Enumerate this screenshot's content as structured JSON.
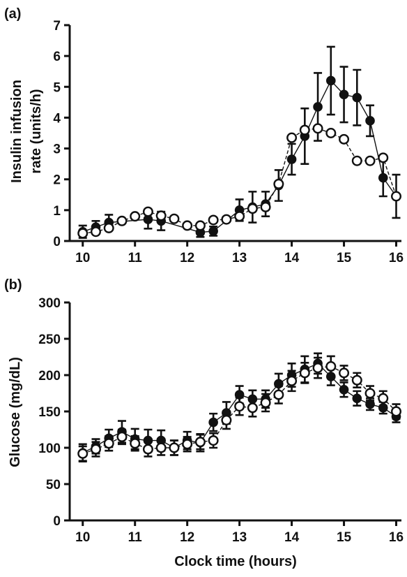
{
  "chart_data": [
    {
      "panel_label": "(a)",
      "type": "line",
      "ylabel_lines": [
        "Insulin infusion",
        "rate (units/h)"
      ],
      "xlabel": "",
      "xlim": [
        9.75,
        16.1
      ],
      "ylim": [
        0,
        7
      ],
      "xticks": [
        10,
        11,
        12,
        13,
        14,
        15,
        16
      ],
      "yticks": [
        0,
        1,
        2,
        3,
        4,
        5,
        6,
        7
      ],
      "grid": false,
      "series": [
        {
          "marker": "filled",
          "line_style": "solid",
          "x": [
            10.0,
            10.25,
            10.5,
            11.25,
            11.5,
            12.25,
            12.5,
            13.0,
            13.25,
            13.5,
            13.75,
            14.0,
            14.25,
            14.5,
            14.75,
            15.0,
            15.25,
            15.5,
            15.75,
            16.0
          ],
          "y": [
            0.3,
            0.45,
            0.6,
            0.7,
            0.65,
            0.28,
            0.32,
            1.0,
            1.1,
            1.2,
            1.8,
            2.65,
            3.4,
            4.35,
            5.2,
            4.75,
            4.65,
            3.9,
            2.05,
            1.45
          ],
          "err": [
            0.2,
            0.2,
            0.25,
            0.3,
            0.3,
            0.15,
            0.15,
            0.35,
            0.5,
            0.4,
            0.5,
            0.5,
            0.9,
            1.1,
            1.1,
            0.9,
            0.9,
            0.5,
            0.6,
            0.7
          ]
        },
        {
          "marker": "open",
          "line_style": "dashed",
          "x": [
            10.0,
            10.25,
            10.5,
            10.75,
            11.0,
            11.25,
            11.5,
            11.75,
            12.0,
            12.25,
            12.5,
            12.75,
            13.0,
            13.25,
            13.5,
            13.75,
            14.0,
            14.25,
            14.5,
            14.75,
            15.0,
            15.25,
            15.5,
            15.75,
            16.0
          ],
          "y": [
            0.25,
            0.3,
            0.42,
            0.65,
            0.8,
            0.95,
            0.82,
            0.72,
            0.5,
            0.5,
            0.68,
            0.7,
            0.8,
            1.05,
            1.1,
            1.85,
            3.35,
            3.6,
            3.65,
            3.5,
            3.3,
            2.6,
            2.6,
            2.7,
            1.45
          ]
        }
      ]
    },
    {
      "panel_label": "(b)",
      "type": "line",
      "ylabel": "Glucose (mg/dL)",
      "xlabel": "Clock time (hours)",
      "xlim": [
        9.75,
        16.1
      ],
      "ylim": [
        0,
        300
      ],
      "xticks": [
        10,
        11,
        12,
        13,
        14,
        15,
        16
      ],
      "yticks": [
        0,
        50,
        100,
        150,
        200,
        250,
        300
      ],
      "grid": false,
      "series": [
        {
          "marker": "filled",
          "line_style": "solid",
          "x": [
            10.0,
            10.25,
            10.5,
            10.75,
            11.0,
            11.25,
            11.5,
            11.75,
            12.0,
            12.25,
            12.5,
            12.75,
            13.0,
            13.25,
            13.5,
            13.75,
            14.0,
            14.25,
            14.5,
            14.75,
            15.0,
            15.25,
            15.5,
            15.75,
            16.0
          ],
          "y": [
            93,
            102,
            113,
            122,
            112,
            110,
            110,
            100,
            110,
            107,
            135,
            148,
            173,
            167,
            167,
            188,
            200,
            208,
            216,
            198,
            180,
            168,
            160,
            155,
            143
          ],
          "err": [
            12,
            10,
            12,
            15,
            14,
            15,
            14,
            10,
            12,
            12,
            12,
            15,
            12,
            12,
            12,
            14,
            16,
            18,
            14,
            12,
            10,
            10,
            8,
            8,
            8
          ]
        },
        {
          "marker": "open",
          "line_style": "dashed",
          "x": [
            10.0,
            10.25,
            10.5,
            10.75,
            11.0,
            11.25,
            11.5,
            11.75,
            12.0,
            12.25,
            12.5,
            12.75,
            13.0,
            13.25,
            13.5,
            13.75,
            14.0,
            14.25,
            14.5,
            14.75,
            15.0,
            15.25,
            15.5,
            15.75,
            16.0
          ],
          "y": [
            92,
            98,
            106,
            115,
            106,
            98,
            100,
            100,
            105,
            108,
            110,
            138,
            157,
            155,
            162,
            173,
            192,
            203,
            210,
            212,
            203,
            193,
            175,
            168,
            150
          ],
          "err": [
            10,
            10,
            10,
            10,
            10,
            10,
            10,
            10,
            10,
            10,
            10,
            12,
            12,
            12,
            12,
            12,
            14,
            14,
            14,
            14,
            10,
            10,
            10,
            10,
            10
          ]
        }
      ]
    }
  ]
}
